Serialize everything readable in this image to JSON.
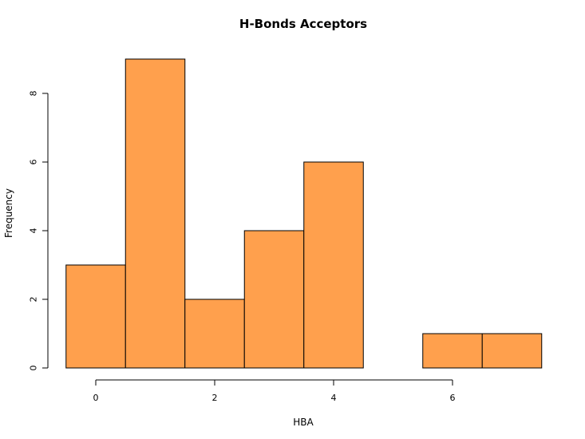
{
  "chart_data": {
    "type": "bar",
    "title": "H-Bonds Acceptors",
    "xlabel": "HBA",
    "ylabel": "Frequency",
    "bins": [
      {
        "x0": -0.5,
        "x1": 0.5,
        "count": 3
      },
      {
        "x0": 0.5,
        "x1": 1.5,
        "count": 9
      },
      {
        "x0": 1.5,
        "x1": 2.5,
        "count": 2
      },
      {
        "x0": 2.5,
        "x1": 3.5,
        "count": 4
      },
      {
        "x0": 3.5,
        "x1": 4.5,
        "count": 6
      },
      {
        "x0": 4.5,
        "x1": 5.5,
        "count": 0
      },
      {
        "x0": 5.5,
        "x1": 6.5,
        "count": 1
      },
      {
        "x0": 6.5,
        "x1": 7.5,
        "count": 1
      }
    ],
    "xticks": [
      0,
      2,
      4,
      6
    ],
    "yticks": [
      0,
      2,
      4,
      6,
      8
    ],
    "xlim": [
      -0.5,
      7.5
    ],
    "ylim": [
      0,
      9
    ],
    "bar_color": "#FFA04D",
    "grid": false
  }
}
